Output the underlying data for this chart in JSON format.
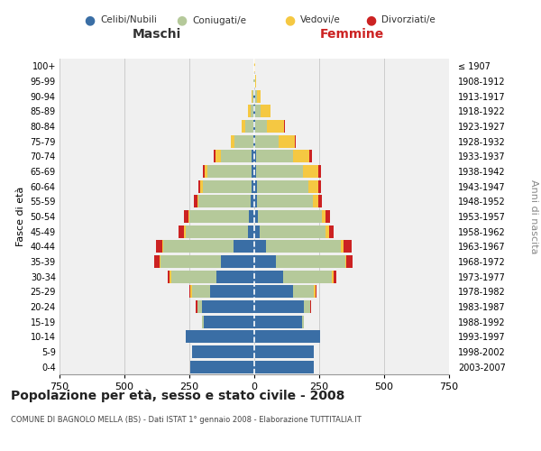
{
  "age_groups": [
    "0-4",
    "5-9",
    "10-14",
    "15-19",
    "20-24",
    "25-29",
    "30-34",
    "35-39",
    "40-44",
    "45-49",
    "50-54",
    "55-59",
    "60-64",
    "65-69",
    "70-74",
    "75-79",
    "80-84",
    "85-89",
    "90-94",
    "95-99",
    "100+"
  ],
  "birth_years": [
    "2003-2007",
    "1998-2002",
    "1993-1997",
    "1988-1992",
    "1983-1987",
    "1978-1982",
    "1973-1977",
    "1968-1972",
    "1963-1967",
    "1958-1962",
    "1953-1957",
    "1948-1952",
    "1943-1947",
    "1938-1942",
    "1933-1937",
    "1928-1932",
    "1923-1927",
    "1918-1922",
    "1913-1917",
    "1908-1912",
    "≤ 1907"
  ],
  "male": {
    "celibi": [
      245,
      240,
      265,
      195,
      200,
      170,
      145,
      130,
      80,
      25,
      20,
      15,
      12,
      10,
      10,
      5,
      5,
      3,
      2,
      1,
      0
    ],
    "coniugati": [
      0,
      0,
      0,
      5,
      20,
      70,
      175,
      230,
      270,
      240,
      230,
      200,
      185,
      170,
      120,
      70,
      30,
      12,
      5,
      1,
      0
    ],
    "vedovi": [
      0,
      0,
      0,
      0,
      0,
      5,
      5,
      5,
      5,
      5,
      5,
      5,
      10,
      10,
      20,
      15,
      15,
      8,
      4,
      1,
      0
    ],
    "divorziati": [
      0,
      0,
      0,
      0,
      5,
      5,
      10,
      20,
      25,
      20,
      15,
      12,
      10,
      8,
      5,
      2,
      0,
      0,
      0,
      0,
      0
    ]
  },
  "female": {
    "nubili": [
      230,
      230,
      255,
      185,
      190,
      150,
      110,
      85,
      45,
      20,
      15,
      12,
      10,
      8,
      8,
      5,
      5,
      3,
      2,
      1,
      0
    ],
    "coniugate": [
      0,
      0,
      0,
      5,
      25,
      80,
      190,
      265,
      290,
      255,
      245,
      215,
      200,
      180,
      140,
      90,
      45,
      20,
      8,
      2,
      0
    ],
    "vedove": [
      0,
      0,
      0,
      0,
      0,
      5,
      5,
      5,
      10,
      12,
      15,
      20,
      35,
      60,
      65,
      60,
      65,
      40,
      15,
      5,
      2
    ],
    "divorziate": [
      0,
      0,
      0,
      0,
      5,
      5,
      10,
      25,
      30,
      20,
      18,
      15,
      12,
      10,
      10,
      5,
      2,
      0,
      0,
      0,
      0
    ]
  },
  "colors": {
    "celibi": "#3a6ea5",
    "coniugati": "#b5c99a",
    "vedovi": "#f5c842",
    "divorziati": "#cc2222"
  },
  "title": "Popolazione per età, sesso e stato civile - 2008",
  "subtitle": "COMUNE DI BAGNOLO MELLA (BS) - Dati ISTAT 1° gennaio 2008 - Elaborazione TUTTITALIA.IT",
  "xlabel_left": "Maschi",
  "xlabel_right": "Femmine",
  "ylabel_left": "Fasce di età",
  "ylabel_right": "Anni di nascita",
  "xlim": 750,
  "bg_color": "#f0f0f0",
  "grid_color": "#cccccc",
  "legend_labels": [
    "Celibi/Nubili",
    "Coniugati/e",
    "Vedovi/e",
    "Divorziati/e"
  ]
}
